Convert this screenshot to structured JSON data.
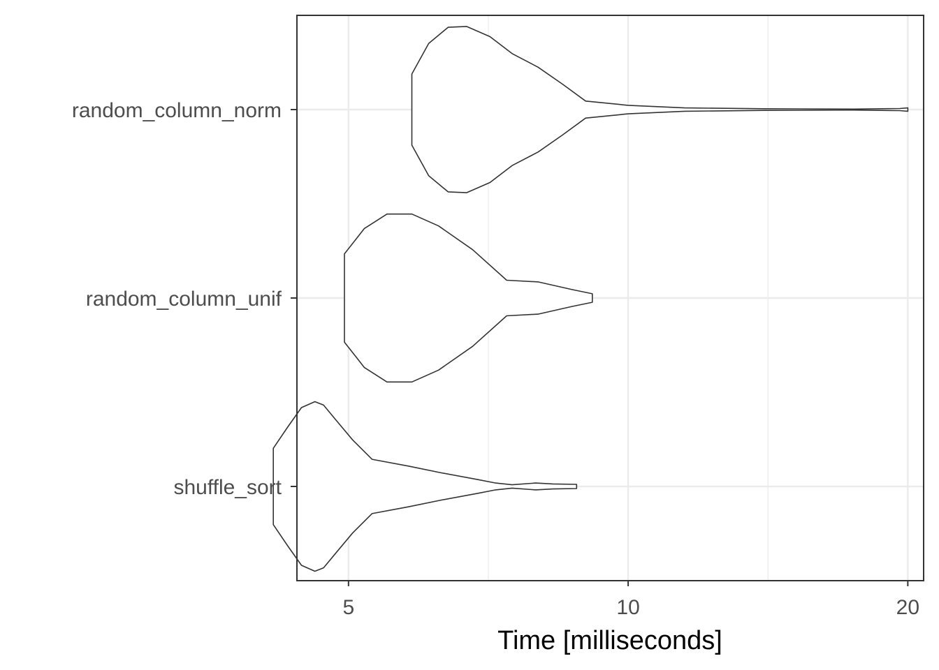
{
  "chart_data": {
    "type": "violin",
    "orientation": "horizontal",
    "title": "",
    "xlabel": "Time [milliseconds]",
    "ylabel": "",
    "x_scale": "log10",
    "xlim": [
      4.4,
      20.8
    ],
    "x_ticks": [
      5,
      10,
      20
    ],
    "x_tick_labels": [
      "5",
      "10",
      "20"
    ],
    "grid": true,
    "theme": "black-and-white",
    "categories": [
      "shuffle_sort",
      "random_column_unif",
      "random_column_norm"
    ],
    "series": [
      {
        "name": "shuffle_sort",
        "x": [
          4.15,
          4.3,
          4.45,
          4.6,
          4.7,
          4.85,
          5.05,
          5.3,
          5.8,
          6.3,
          6.9,
          7.2,
          7.5,
          7.95,
          8.3,
          8.8
        ],
        "density": [
          0.45,
          0.7,
          0.93,
          1.0,
          0.96,
          0.78,
          0.55,
          0.32,
          0.24,
          0.16,
          0.08,
          0.04,
          0.02,
          0.04,
          0.03,
          0.025
        ]
      },
      {
        "name": "random_column_unif",
        "x": [
          4.95,
          5.2,
          5.5,
          5.85,
          6.25,
          6.8,
          7.4,
          8.0,
          8.7,
          9.15
        ],
        "density": [
          0.52,
          0.82,
          0.99,
          0.99,
          0.85,
          0.57,
          0.21,
          0.19,
          0.1,
          0.05
        ]
      },
      {
        "name": "random_column_norm",
        "x": [
          5.85,
          6.1,
          6.4,
          6.7,
          7.1,
          7.5,
          8.0,
          8.5,
          9.0,
          10.0,
          11.5,
          14.0,
          17.5,
          19.6,
          20.0
        ],
        "density": [
          0.42,
          0.78,
          0.97,
          0.98,
          0.86,
          0.66,
          0.5,
          0.3,
          0.1,
          0.05,
          0.02,
          0.01,
          0.006,
          0.012,
          0.02
        ]
      }
    ]
  }
}
